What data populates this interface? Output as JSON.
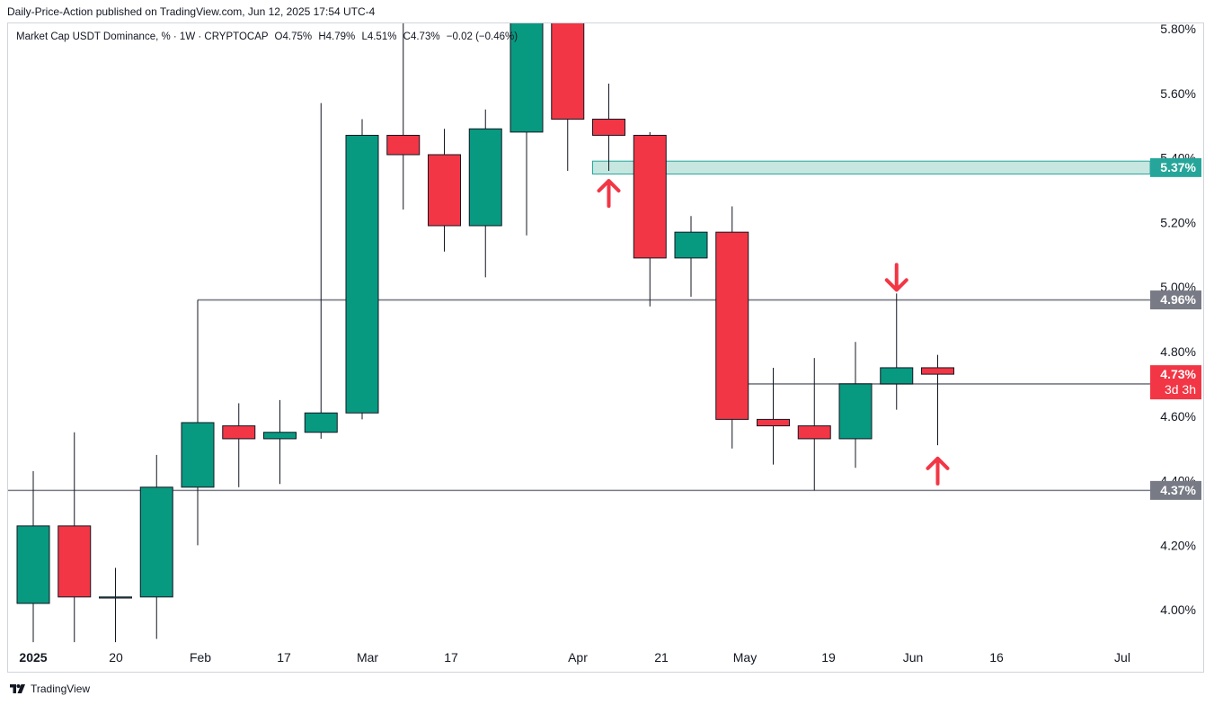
{
  "header": {
    "published": "Daily-Price-Action published on TradingView.com, Jun 12, 2025 17:54 UTC-4"
  },
  "legend": {
    "symbol": "Market Cap USDT Dominance, % · 1W · CRYPTOCAP",
    "open": "O4.75%",
    "high": "H4.79%",
    "low": "L4.51%",
    "close": "C4.73%",
    "change": "−0.02 (−0.46%)"
  },
  "footer": {
    "brand": "TradingView"
  },
  "colors": {
    "up": "#089981",
    "down": "#f23645",
    "level_line": "#787b86",
    "zone_fill": "#b2dfd6",
    "zone_border": "#26a69a",
    "arrow": "#f23645",
    "label_gray": "#787b86",
    "label_green": "#26a69a",
    "label_red": "#f23645"
  },
  "chart_data": {
    "type": "candlestick",
    "title": "Market Cap USDT Dominance",
    "timeframe": "1W",
    "ylim": [
      3.88,
      5.82
    ],
    "y_ticks": [
      "5.80%",
      "5.60%",
      "5.40%",
      "5.20%",
      "5.00%",
      "4.80%",
      "4.60%",
      "4.40%",
      "4.20%",
      "4.00%"
    ],
    "x_ticks": [
      "2025",
      "20",
      "Feb",
      "17",
      "Mar",
      "17",
      "Apr",
      "21",
      "May",
      "19",
      "Jun",
      "16",
      "Jul"
    ],
    "candles": [
      {
        "o": 4.02,
        "h": 4.43,
        "l": 3.9,
        "c": 4.26
      },
      {
        "o": 4.26,
        "h": 4.55,
        "l": 3.9,
        "c": 4.04
      },
      {
        "o": 4.04,
        "h": 4.13,
        "l": 3.9,
        "c": 4.04
      },
      {
        "o": 4.04,
        "h": 4.48,
        "l": 3.91,
        "c": 4.38
      },
      {
        "o": 4.38,
        "h": 4.96,
        "l": 4.2,
        "c": 4.58
      },
      {
        "o": 4.57,
        "h": 4.64,
        "l": 4.38,
        "c": 4.53
      },
      {
        "o": 4.53,
        "h": 4.65,
        "l": 4.39,
        "c": 4.55
      },
      {
        "o": 4.55,
        "h": 5.57,
        "l": 4.53,
        "c": 4.61
      },
      {
        "o": 4.61,
        "h": 5.52,
        "l": 4.59,
        "c": 5.47
      },
      {
        "o": 5.47,
        "h": 5.85,
        "l": 5.24,
        "c": 5.41
      },
      {
        "o": 5.41,
        "h": 5.49,
        "l": 5.11,
        "c": 5.19
      },
      {
        "o": 5.19,
        "h": 5.55,
        "l": 5.03,
        "c": 5.49
      },
      {
        "o": 5.48,
        "h": 6.0,
        "l": 5.16,
        "c": 5.9
      },
      {
        "o": 5.9,
        "h": 5.95,
        "l": 5.36,
        "c": 5.52
      },
      {
        "o": 5.52,
        "h": 5.63,
        "l": 5.36,
        "c": 5.47
      },
      {
        "o": 5.47,
        "h": 5.48,
        "l": 4.94,
        "c": 5.09
      },
      {
        "o": 5.09,
        "h": 5.22,
        "l": 4.97,
        "c": 5.17
      },
      {
        "o": 5.17,
        "h": 5.25,
        "l": 4.5,
        "c": 4.59
      },
      {
        "o": 4.59,
        "h": 4.75,
        "l": 4.45,
        "c": 4.57
      },
      {
        "o": 4.57,
        "h": 4.78,
        "l": 4.37,
        "c": 4.53
      },
      {
        "o": 4.53,
        "h": 4.83,
        "l": 4.44,
        "c": 4.7
      },
      {
        "o": 4.7,
        "h": 4.98,
        "l": 4.62,
        "c": 4.75
      },
      {
        "o": 4.75,
        "h": 4.79,
        "l": 4.51,
        "c": 4.73
      }
    ],
    "levels": [
      {
        "value": 4.96,
        "label": "4.96%",
        "start_index": 4
      },
      {
        "value": 4.7,
        "label": "4.70%",
        "start_index": 17
      },
      {
        "value": 4.37,
        "label": "4.37%",
        "start_index": 0
      }
    ],
    "zone": {
      "low": 5.35,
      "high": 5.39,
      "label": "5.37%",
      "start_index": 14
    },
    "price_label": {
      "value": 4.73,
      "label": "4.73%",
      "countdown": "3d 3h"
    },
    "arrows": [
      {
        "index": 14,
        "value": 5.29,
        "direction": "up"
      },
      {
        "index": 21,
        "value": 5.03,
        "direction": "down"
      },
      {
        "index": 22,
        "value": 4.43,
        "direction": "up"
      }
    ]
  }
}
